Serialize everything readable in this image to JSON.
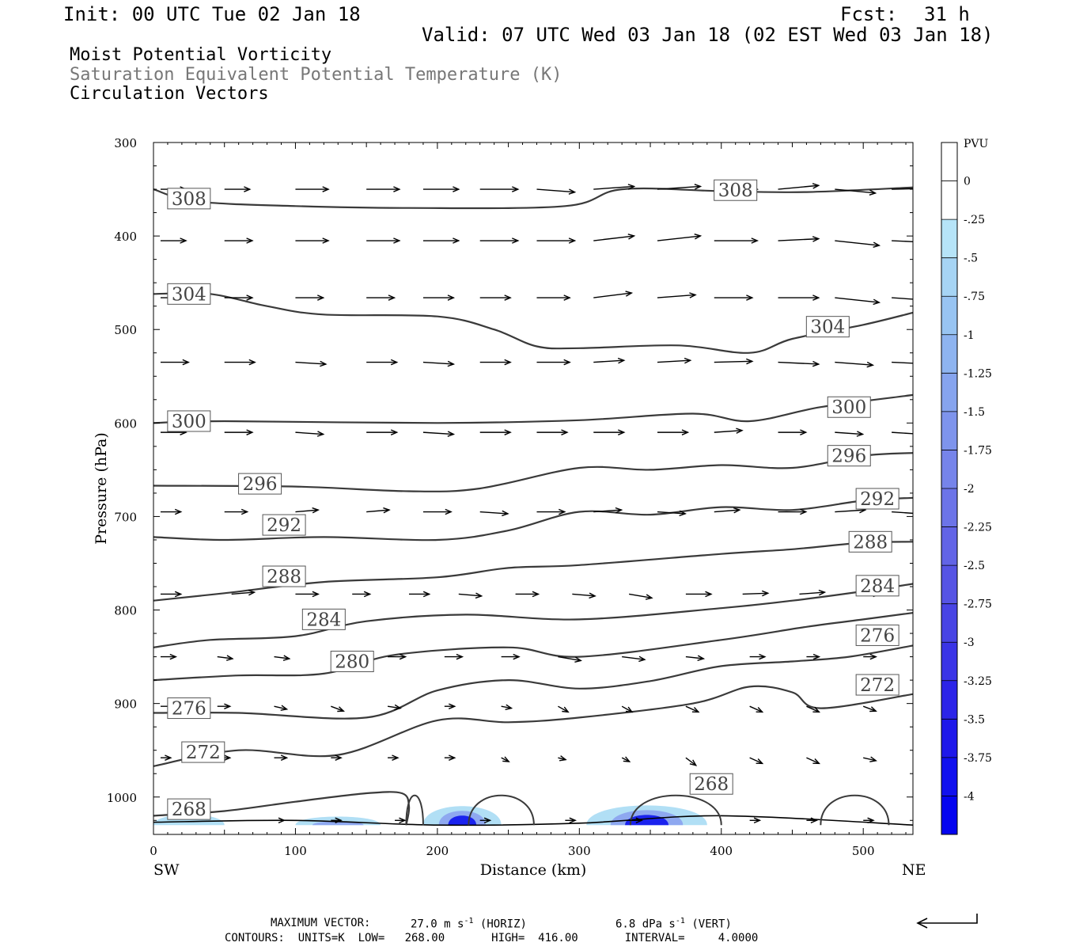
{
  "header": {
    "init": "Init: 00 UTC Tue 02 Jan 18",
    "fcst_label": "Fcst:",
    "fcst_value": "31 h",
    "valid": "Valid: 07 UTC Wed 03 Jan 18 (02 EST Wed 03 Jan 18)",
    "field1": "Moist Potential Vorticity",
    "field2": "Saturation Equivalent Potential Temperature (K)",
    "field3": "Circulation Vectors"
  },
  "footer": {
    "max_vector_label": "MAXIMUM VECTOR:",
    "horiz_value": "27.0 m s",
    "horiz_exp": "-1",
    "horiz_tag": "(HORIZ)",
    "vert_value": "6.8 dPa s",
    "vert_exp": "-1",
    "vert_tag": "(VERT)",
    "contours": "CONTOURS:  UNITS=K  LOW=   268.00       HIGH=  416.00       INTERVAL=     4.0000"
  },
  "colors": {
    "contour": "#3a3a3a",
    "vector": "#000000",
    "mpv_light": "#a8dcf4",
    "mpv_mid": "#8ea8f0",
    "mpv_dark": "#1a22ee"
  },
  "chart_data": {
    "type": "contour",
    "xlabel": "Distance (km)",
    "ylabel": "Pressure (hPa)",
    "xlim": [
      0,
      535
    ],
    "ylim": [
      1040,
      300
    ],
    "x_ticks": [
      "0",
      "100",
      "200",
      "300",
      "400",
      "500"
    ],
    "x_tick_values": [
      0,
      100,
      200,
      300,
      400,
      500
    ],
    "y_ticks": [
      "300",
      "400",
      "500",
      "600",
      "700",
      "800",
      "900",
      "1000"
    ],
    "y_tick_values": [
      300,
      400,
      500,
      600,
      700,
      800,
      900,
      1000
    ],
    "left_end_label": "SW",
    "right_end_label": "NE",
    "colorbar": {
      "label": "PVU",
      "tick_labels": [
        "0",
        "-.25",
        "-.5",
        "-.75",
        "-1",
        "-1.25",
        "-1.5",
        "-1.75",
        "-2",
        "-2.25",
        "-2.5",
        "-2.75",
        "-3",
        "-3.25",
        "-3.5",
        "-3.75",
        "-4"
      ],
      "colors": [
        "#ffffff",
        "#ffffff",
        "#b6e4f8",
        "#a6d4f4",
        "#98c4f2",
        "#8eb4f0",
        "#86a4ee",
        "#7e94ec",
        "#7684ea",
        "#6c74e8",
        "#6264e6",
        "#5654e4",
        "#4844e4",
        "#3a34e6",
        "#2c24e8",
        "#1e18ea",
        "#1010ee",
        "#0404f0"
      ]
    },
    "contour_units": "K",
    "contour_low": 268,
    "contour_high": 416,
    "contour_interval": 4,
    "isentropes": [
      {
        "level": "308",
        "label_x": 25,
        "label_p": 360,
        "x": [
          0,
          30,
          100,
          180,
          290,
          330,
          400,
          460,
          535
        ],
        "p": [
          350,
          363,
          368,
          370,
          368,
          350,
          352,
          353,
          348
        ]
      },
      {
        "level": "308",
        "label_x": 410,
        "label_p": 351,
        "x": [],
        "p": []
      },
      {
        "level": "304",
        "label_x": 25,
        "label_p": 462,
        "x": [
          0,
          40,
          80,
          120,
          200,
          240,
          270,
          300,
          370,
          420,
          450,
          500,
          535
        ],
        "p": [
          462,
          462,
          475,
          484,
          486,
          500,
          518,
          520,
          517,
          525,
          510,
          495,
          482
        ]
      },
      {
        "level": "304",
        "label_x": 475,
        "label_p": 497,
        "x": [],
        "p": []
      },
      {
        "level": "300",
        "label_x": 25,
        "label_p": 598,
        "x": [
          0,
          50,
          200,
          300,
          380,
          420,
          470,
          535
        ],
        "p": [
          600,
          598,
          600,
          597,
          590,
          598,
          583,
          570
        ]
      },
      {
        "level": "300",
        "label_x": 490,
        "label_p": 583,
        "x": [],
        "p": []
      },
      {
        "level": "296",
        "label_x": 75,
        "label_p": 665,
        "x": [
          0,
          100,
          180,
          230,
          300,
          350,
          400,
          450,
          500,
          535
        ],
        "p": [
          667,
          668,
          673,
          670,
          648,
          650,
          645,
          648,
          635,
          632
        ]
      },
      {
        "level": "296",
        "label_x": 490,
        "label_p": 635,
        "x": [],
        "p": []
      },
      {
        "level": "292",
        "label_x": 92,
        "label_p": 709,
        "x": [
          0,
          50,
          120,
          200,
          250,
          300,
          350,
          400,
          450,
          500,
          535
        ],
        "p": [
          722,
          725,
          722,
          725,
          715,
          695,
          698,
          690,
          693,
          683,
          680
        ]
      },
      {
        "level": "292",
        "label_x": 510,
        "label_p": 681,
        "x": [],
        "p": []
      },
      {
        "level": "288",
        "label_x": 92,
        "label_p": 764,
        "x": [
          0,
          50,
          120,
          200,
          250,
          300,
          400,
          450,
          500,
          535
        ],
        "p": [
          790,
          782,
          770,
          765,
          755,
          752,
          740,
          735,
          728,
          727
        ]
      },
      {
        "level": "288",
        "label_x": 505,
        "label_p": 727,
        "x": [],
        "p": []
      },
      {
        "level": "284",
        "label_x": 120,
        "label_p": 810,
        "x": [
          0,
          40,
          100,
          150,
          220,
          300,
          400,
          450,
          500,
          535
        ],
        "p": [
          840,
          832,
          828,
          812,
          805,
          810,
          798,
          790,
          780,
          772
        ]
      },
      {
        "level": "284",
        "label_x": 510,
        "label_p": 774,
        "x": [],
        "p": []
      },
      {
        "level": "280",
        "label_x": 140,
        "label_p": 855,
        "x": [
          0,
          60,
          120,
          170,
          250,
          300,
          400,
          460,
          500,
          535
        ],
        "p": [
          875,
          870,
          868,
          848,
          840,
          850,
          832,
          818,
          810,
          803
        ]
      },
      {
        "level": "276",
        "label_x": 25,
        "label_p": 905,
        "x": [
          0,
          60,
          150,
          200,
          250,
          300,
          350,
          400,
          450,
          490,
          535
        ],
        "p": [
          910,
          910,
          915,
          886,
          875,
          884,
          876,
          860,
          855,
          850,
          838
        ]
      },
      {
        "level": "276",
        "label_x": 510,
        "label_p": 827,
        "x": [],
        "p": []
      },
      {
        "level": "272",
        "label_x": 35,
        "label_p": 952,
        "x": [
          0,
          60,
          130,
          200,
          250,
          300,
          380,
          420,
          450,
          470,
          535
        ],
        "p": [
          967,
          950,
          955,
          918,
          920,
          915,
          900,
          882,
          888,
          905,
          890
        ]
      },
      {
        "level": "272",
        "label_x": 510,
        "label_p": 880,
        "x": [],
        "p": []
      },
      {
        "level": "268",
        "label_x": 25,
        "label_p": 1013,
        "x": [
          0,
          50,
          100,
          150,
          175,
          180,
          178
        ],
        "p": [
          1020,
          1015,
          1005,
          996,
          996,
          1010,
          1030
        ]
      },
      {
        "level": "268",
        "label_x": 393,
        "label_p": 986,
        "x": [],
        "p": []
      }
    ],
    "surface_points": {
      "x": [
        0,
        100,
        200,
        300,
        400,
        535
      ],
      "p": [
        1027,
        1025,
        1030,
        1028,
        1020,
        1030
      ]
    },
    "vectors": [
      {
        "p": 350,
        "x": [
          5,
          50,
          100,
          150,
          190,
          230,
          270,
          310,
          355,
          395,
          440,
          480,
          520
        ],
        "dx": [
          20,
          20,
          26,
          26,
          28,
          30,
          30,
          32,
          34,
          34,
          32,
          32,
          30
        ],
        "dy": [
          0,
          0,
          0,
          0,
          0,
          0,
          3,
          -3,
          -3,
          0,
          -4,
          4,
          -1
        ]
      },
      {
        "p": 405,
        "x": [
          5,
          50,
          100,
          150,
          190,
          230,
          270,
          310,
          355,
          395,
          440,
          480,
          520
        ],
        "dx": [
          20,
          22,
          26,
          26,
          28,
          30,
          30,
          32,
          34,
          34,
          32,
          35,
          32
        ],
        "dy": [
          0,
          0,
          0,
          0,
          0,
          0,
          0,
          -5,
          -5,
          0,
          -2,
          5,
          2
        ]
      },
      {
        "p": 466,
        "x": [
          5,
          50,
          100,
          150,
          190,
          230,
          270,
          310,
          355,
          395,
          440,
          480,
          520
        ],
        "dx": [
          20,
          22,
          22,
          22,
          24,
          24,
          26,
          30,
          30,
          30,
          32,
          35,
          33
        ],
        "dy": [
          0,
          0,
          0,
          0,
          0,
          0,
          0,
          -5,
          -3,
          0,
          0,
          5,
          3
        ]
      },
      {
        "p": 535,
        "x": [
          5,
          50,
          100,
          150,
          190,
          230,
          270,
          310,
          355,
          395,
          440,
          480,
          520
        ],
        "dx": [
          22,
          24,
          24,
          24,
          24,
          24,
          26,
          24,
          26,
          30,
          32,
          30,
          32
        ],
        "dy": [
          0,
          0,
          2,
          0,
          2,
          0,
          0,
          -2,
          -2,
          -1,
          2,
          3,
          2
        ]
      },
      {
        "p": 610,
        "x": [
          5,
          50,
          100,
          150,
          190,
          230,
          270,
          310,
          355,
          395,
          440,
          480,
          520
        ],
        "dx": [
          20,
          22,
          22,
          24,
          24,
          24,
          24,
          24,
          24,
          22,
          22,
          22,
          24
        ],
        "dy": [
          0,
          0,
          2,
          0,
          2,
          0,
          0,
          0,
          0,
          -2,
          0,
          2,
          2
        ]
      },
      {
        "p": 695,
        "x": [
          5,
          50,
          100,
          150,
          190,
          230,
          270,
          310,
          355,
          395,
          440,
          480,
          520
        ],
        "dx": [
          16,
          18,
          18,
          18,
          22,
          22,
          22,
          22,
          22,
          20,
          22,
          24,
          22
        ],
        "dy": [
          0,
          0,
          -2,
          -2,
          0,
          2,
          0,
          -2,
          2,
          -2,
          0,
          -2,
          2
        ]
      },
      {
        "p": 783,
        "x": [
          5,
          55,
          100,
          140,
          180,
          215,
          255,
          295,
          335,
          375,
          415,
          455,
          495
        ],
        "dx": [
          16,
          18,
          18,
          14,
          16,
          18,
          18,
          18,
          18,
          20,
          20,
          20,
          18
        ],
        "dy": [
          0,
          -2,
          0,
          0,
          0,
          2,
          0,
          2,
          4,
          0,
          -1,
          -2,
          0
        ]
      },
      {
        "p": 850,
        "x": [
          5,
          45,
          85,
          125,
          165,
          205,
          245,
          285,
          330,
          375,
          420,
          460,
          500
        ],
        "dx": [
          12,
          12,
          12,
          14,
          14,
          14,
          14,
          18,
          18,
          14,
          12,
          10,
          10
        ],
        "dy": [
          0,
          2,
          2,
          5,
          0,
          0,
          0,
          4,
          3,
          2,
          0,
          0,
          0
        ]
      },
      {
        "p": 903,
        "x": [
          5,
          45,
          85,
          125,
          165,
          205,
          245,
          285,
          330,
          375,
          420,
          460,
          500
        ],
        "dx": [
          10,
          10,
          10,
          10,
          10,
          8,
          8,
          8,
          8,
          10,
          10,
          10,
          10
        ],
        "dy": [
          0,
          0,
          3,
          5,
          2,
          0,
          2,
          6,
          6,
          6,
          6,
          6,
          5
        ]
      },
      {
        "p": 958,
        "x": [
          5,
          45,
          85,
          125,
          165,
          205,
          245,
          285,
          330,
          375,
          420,
          460,
          500
        ],
        "dx": [
          8,
          10,
          10,
          8,
          8,
          8,
          6,
          6,
          6,
          8,
          10,
          10,
          10
        ],
        "dy": [
          0,
          0,
          0,
          0,
          0,
          0,
          4,
          2,
          4,
          8,
          6,
          6,
          3
        ]
      },
      {
        "p": 1025,
        "x": [
          85,
          125,
          170,
          230,
          290,
          335,
          420,
          460,
          500
        ],
        "dx": [
          8,
          8,
          8,
          8,
          8,
          10,
          8,
          8,
          8
        ],
        "dy": [
          0,
          0,
          0,
          0,
          0,
          0,
          0,
          0,
          0
        ]
      }
    ],
    "mpv_regions": [
      {
        "x": [
          0,
          50
        ],
        "p_top": [
          1015,
          1023
        ],
        "shade": "light"
      },
      {
        "x": [
          100,
          160
        ],
        "p_top": [
          1023,
          1018
        ],
        "shade": "mid"
      },
      {
        "x": [
          190,
          245
        ],
        "p_top": [
          1003,
          1005
        ],
        "shade": "dark"
      },
      {
        "x": [
          305,
          390
        ],
        "p_top": [
          1002,
          1012
        ],
        "shade": "dark"
      }
    ]
  }
}
